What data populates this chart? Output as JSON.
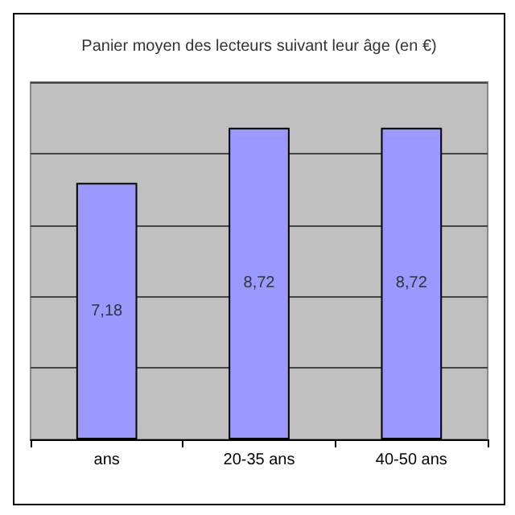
{
  "chart_data": {
    "type": "bar",
    "title": "Panier moyen des lecteurs suivant leur âge (en €)",
    "categories": [
      "ans",
      "20-35 ans",
      "40-50 ans"
    ],
    "values": [
      7.18,
      8.72,
      8.72
    ],
    "value_labels": [
      "7,18",
      "8,72",
      "8,72"
    ],
    "color": "#9999ff",
    "grid": "y",
    "tick_labels": "x"
  }
}
